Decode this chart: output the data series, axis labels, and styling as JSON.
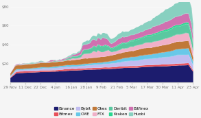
{
  "title": "",
  "xlabel": "",
  "ylabel": "",
  "ylim": [
    0,
    85
  ],
  "yticks": [
    20,
    40,
    60,
    80
  ],
  "ytick_labels": [
    "$20",
    "$40",
    "$60",
    "$80"
  ],
  "xtick_labels": [
    "29 Nov",
    "11 Dec",
    "22 Dec",
    "4 Jan",
    "16 Jan",
    "28 Jan",
    "9 Feb",
    "21 Feb",
    "5 Mar",
    "17 Mar",
    "30 Mar",
    "11 Apr",
    "23 Apr"
  ],
  "exchanges": [
    "Binance",
    "Bitmex",
    "Bybit",
    "CME",
    "Okex",
    "FTX",
    "Deribit",
    "Kraken",
    "Bitfinex",
    "Huobi"
  ],
  "colors": [
    "#1c1c6e",
    "#e8505a",
    "#c0bcf0",
    "#68c8e8",
    "#c07838",
    "#f0b0c8",
    "#5ac8a0",
    "#28d890",
    "#d070b0",
    "#88d0c0"
  ],
  "background_color": "#f5f5f5",
  "legend_fontsize": 4.2,
  "tick_fontsize": 4.0
}
